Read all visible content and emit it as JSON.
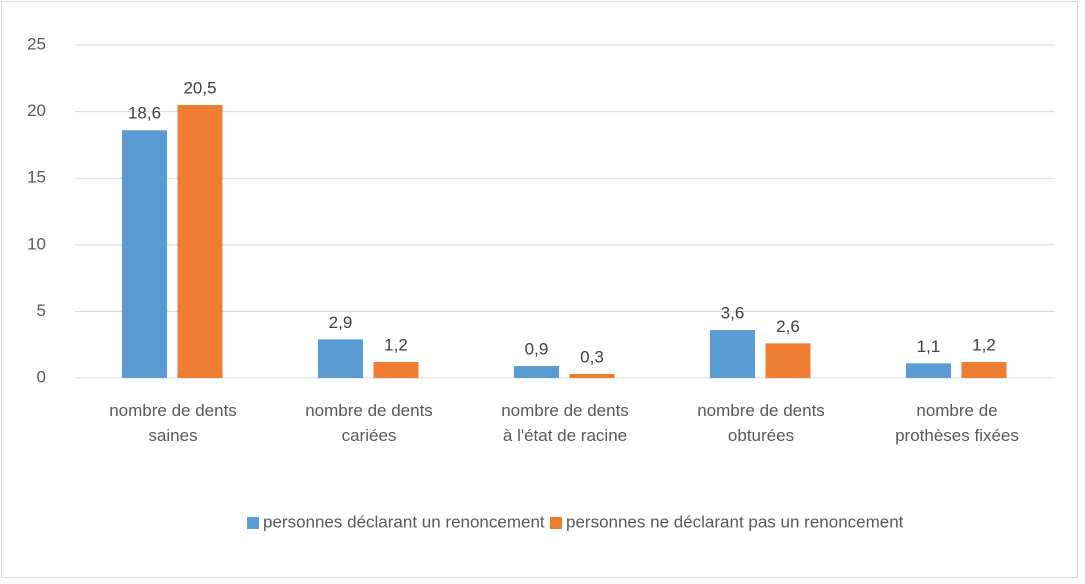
{
  "chart_data": {
    "type": "bar",
    "categories": [
      [
        "nombre de dents",
        "saines"
      ],
      [
        "nombre de dents",
        "cariées"
      ],
      [
        "nombre de dents",
        "à l'état de racine"
      ],
      [
        "nombre de dents",
        "obturées"
      ],
      [
        "nombre de",
        "prothèses fixées"
      ]
    ],
    "series": [
      {
        "name": "personnes déclarant un renoncement",
        "color": "#5b9bd5",
        "values": [
          18.6,
          2.9,
          0.9,
          3.6,
          1.1
        ],
        "value_labels": [
          "18,6",
          "2,9",
          "0,9",
          "3,6",
          "1,1"
        ]
      },
      {
        "name": "personnes ne déclarant pas un renoncement",
        "color": "#ed7d31",
        "values": [
          20.5,
          1.2,
          0.3,
          2.6,
          1.2
        ],
        "value_labels": [
          "20,5",
          "1,2",
          "0,3",
          "2,6",
          "1,2"
        ]
      }
    ],
    "ylim": [
      0,
      25
    ],
    "yticks": [
      0,
      5,
      10,
      15,
      20,
      25
    ],
    "grid": true,
    "legend": "bottom"
  }
}
